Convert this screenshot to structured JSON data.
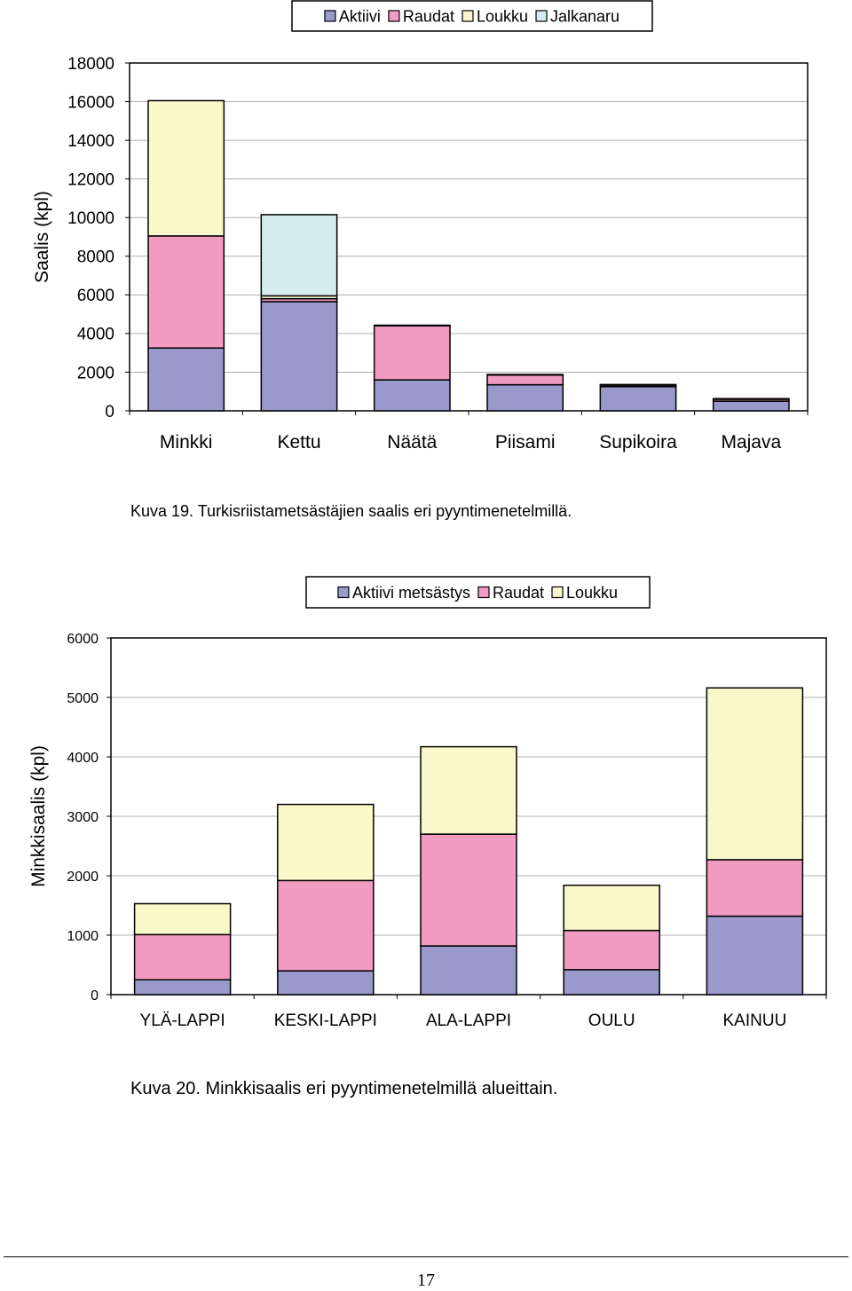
{
  "chart_data": [
    {
      "type": "bar",
      "stacked": true,
      "title": "",
      "ylabel": "Saalis (kpl)",
      "xlabel": "",
      "ylim": [
        0,
        18000
      ],
      "yticks": [
        0,
        2000,
        4000,
        6000,
        8000,
        10000,
        12000,
        14000,
        16000,
        18000
      ],
      "grid": true,
      "legend": "top-center",
      "categories": [
        "Minkki",
        "Kettu",
        "Näätä",
        "Piisami",
        "Supikoira",
        "Majava"
      ],
      "series": [
        {
          "name": "Aktiivi",
          "color": "#9999cc",
          "values": [
            3250,
            5650,
            1600,
            1350,
            1250,
            500
          ]
        },
        {
          "name": "Raudat",
          "color": "#f29bc2",
          "values": [
            5800,
            150,
            2800,
            500,
            80,
            100
          ]
        },
        {
          "name": "Loukku",
          "color": "#faf8cb",
          "values": [
            7000,
            150,
            30,
            30,
            30,
            30
          ]
        },
        {
          "name": "Jalkanaru",
          "color": "#d4ebf0",
          "values": [
            0,
            4200,
            0,
            0,
            0,
            0
          ]
        }
      ]
    },
    {
      "type": "bar",
      "stacked": true,
      "title": "",
      "ylabel": "Minkkisaalis (kpl)",
      "xlabel": "",
      "ylim": [
        0,
        6000
      ],
      "yticks": [
        0,
        1000,
        2000,
        3000,
        4000,
        5000,
        6000
      ],
      "grid": true,
      "legend": "top-center",
      "categories": [
        "YLÄ-LAPPI",
        "KESKI-LAPPI",
        "ALA-LAPPI",
        "OULU",
        "KAINUU"
      ],
      "series": [
        {
          "name": "Aktiivi metsästys",
          "color": "#9999cc",
          "values": [
            250,
            400,
            820,
            420,
            1320
          ]
        },
        {
          "name": "Raudat",
          "color": "#f29bc2",
          "values": [
            760,
            1520,
            1880,
            660,
            950
          ]
        },
        {
          "name": "Loukku",
          "color": "#faf8cb",
          "values": [
            520,
            1280,
            1470,
            760,
            2890
          ]
        }
      ]
    }
  ],
  "captions": {
    "figure19": "Kuva 19. Turkisriistametsästäjien saalis eri pyyntimenetelmillä.",
    "figure20": "Kuva 20. Minkkisaalis eri pyyntimenetelmillä alueittain."
  },
  "page_number": "17"
}
